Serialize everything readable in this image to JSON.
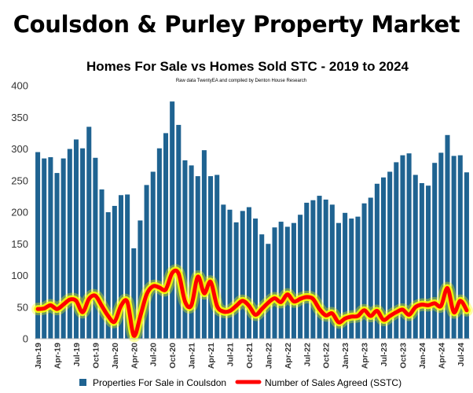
{
  "page": {
    "heading": "Coulsdon & Purley Property Market"
  },
  "chart_data": {
    "type": "bar",
    "title": "Homes For Sale vs Homes Sold STC - 2019 to 2024",
    "subtitle": "Raw data TwentyEA and compiled by Denton House Research",
    "xlabel": "",
    "ylabel": "",
    "ylim": [
      0,
      400
    ],
    "yticks": [
      0,
      50,
      100,
      150,
      200,
      250,
      300,
      350,
      400
    ],
    "grid": false,
    "legend_position": "bottom",
    "categories": [
      "Jan-19",
      "Feb-19",
      "Mar-19",
      "Apr-19",
      "May-19",
      "Jun-19",
      "Jul-19",
      "Aug-19",
      "Sep-19",
      "Oct-19",
      "Nov-19",
      "Dec-19",
      "Jan-20",
      "Feb-20",
      "Mar-20",
      "Apr-20",
      "May-20",
      "Jun-20",
      "Jul-20",
      "Aug-20",
      "Sep-20",
      "Oct-20",
      "Nov-20",
      "Dec-20",
      "Jan-21",
      "Feb-21",
      "Mar-21",
      "Apr-21",
      "May-21",
      "Jun-21",
      "Jul-21",
      "Aug-21",
      "Sep-21",
      "Oct-21",
      "Nov-21",
      "Dec-21",
      "Jan-22",
      "Feb-22",
      "Mar-22",
      "Apr-22",
      "May-22",
      "Jun-22",
      "Jul-22",
      "Aug-22",
      "Sep-22",
      "Oct-22",
      "Nov-22",
      "Dec-22",
      "Jan-23",
      "Feb-23",
      "Mar-23",
      "Apr-23",
      "May-23",
      "Jun-23",
      "Jul-23",
      "Aug-23",
      "Sep-23",
      "Oct-23",
      "Nov-23",
      "Dec-23",
      "Jan-24",
      "Feb-24",
      "Mar-24",
      "Apr-24",
      "May-24",
      "Jun-24",
      "Jul-24",
      "Aug-24"
    ],
    "tick_labels": [
      "Jan-19",
      "Apr-19",
      "Jul-19",
      "Oct-19",
      "Jan-20",
      "Apr-20",
      "Jul-20",
      "Oct-20",
      "Jan-21",
      "Apr-21",
      "Jul-21",
      "Oct-21",
      "Jan-22",
      "Apr-22",
      "Jul-22",
      "Oct-22",
      "Jan-23",
      "Apr-23",
      "Jul-23",
      "Oct-23",
      "Jan-24",
      "Apr-24",
      "Jul-24"
    ],
    "series": [
      {
        "name": "Properties For Sale in Coulsdon",
        "kind": "bar",
        "color": "#1f6391",
        "values": [
          295,
          285,
          287,
          262,
          285,
          300,
          315,
          301,
          335,
          286,
          236,
          200,
          210,
          227,
          228,
          143,
          187,
          243,
          264,
          301,
          325,
          375,
          338,
          282,
          274,
          257,
          298,
          257,
          259,
          212,
          204,
          184,
          202,
          208,
          190,
          165,
          150,
          176,
          185,
          177,
          183,
          196,
          215,
          219,
          226,
          220,
          212,
          183,
          199,
          190,
          193,
          214,
          223,
          245,
          255,
          264,
          279,
          290,
          293,
          259,
          246,
          242,
          278,
          294,
          322,
          289,
          290,
          263
        ]
      },
      {
        "name": "Number of Sales Agreed (SSTC)",
        "kind": "line",
        "color": "#ff0000",
        "glow_color": "#ffff00",
        "values": [
          47,
          48,
          53,
          47,
          54,
          62,
          60,
          42,
          63,
          68,
          52,
          36,
          27,
          52,
          58,
          5,
          35,
          70,
          83,
          81,
          78,
          104,
          103,
          59,
          53,
          98,
          72,
          90,
          52,
          43,
          44,
          52,
          60,
          52,
          38,
          47,
          57,
          64,
          58,
          70,
          59,
          63,
          66,
          63,
          47,
          37,
          40,
          26,
          32,
          35,
          36,
          45,
          36,
          44,
          30,
          36,
          42,
          46,
          38,
          50,
          54,
          53,
          56,
          52,
          80,
          42,
          60,
          45
        ]
      }
    ]
  }
}
